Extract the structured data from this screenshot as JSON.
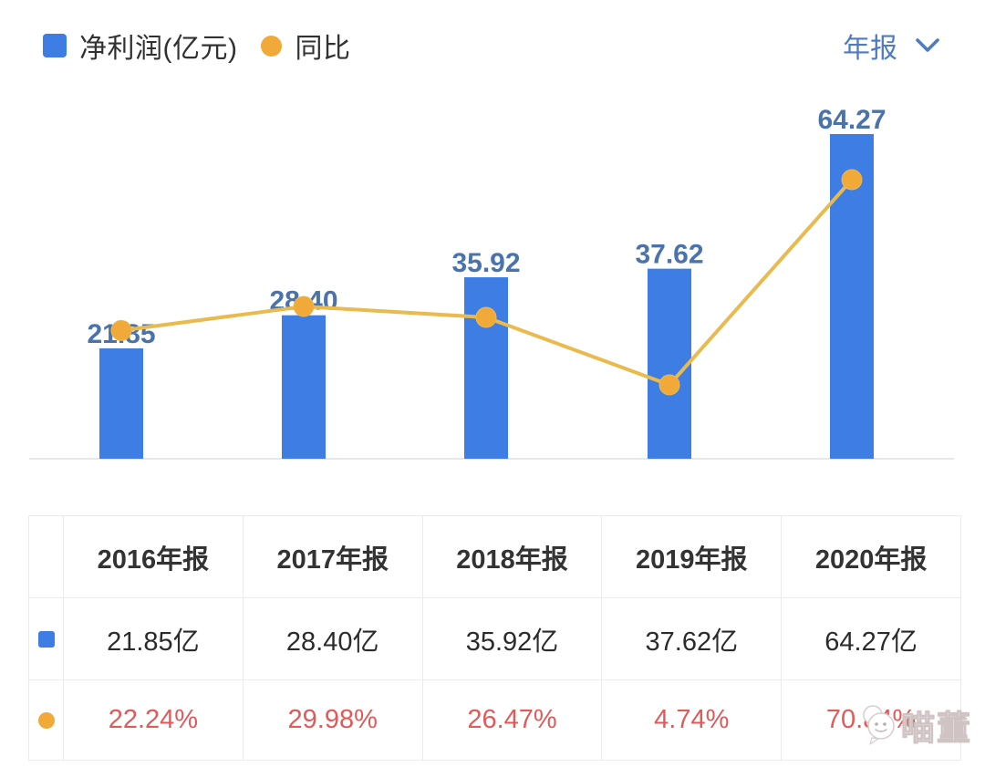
{
  "legend": {
    "bar_label": "净利润(亿元)",
    "line_label": "同比"
  },
  "period_selector": {
    "label": "年报"
  },
  "colors": {
    "bar": "#3d7de4",
    "bar_label": "#4a73ab",
    "line": "#e9ba4d",
    "dot": "#f1a93a",
    "percent_red": "#e05a5a",
    "selector_blue": "#4d7cc0",
    "grid": "#ebebeb",
    "axis": "#e7e7e7",
    "text_dark": "#313131"
  },
  "chart_data": {
    "type": "bar+line combo",
    "categories": [
      "2016年报",
      "2017年报",
      "2018年报",
      "2019年报",
      "2020年报"
    ],
    "series": [
      {
        "name": "净利润(亿元)",
        "type": "bar",
        "values": [
          21.85,
          28.4,
          35.92,
          37.62,
          64.27
        ],
        "data_labels": [
          "21.85",
          "28.40",
          "35.92",
          "37.62",
          "64.27"
        ]
      },
      {
        "name": "同比",
        "type": "line",
        "unit": "%",
        "values": [
          22.24,
          29.98,
          26.47,
          4.74,
          70.84
        ]
      }
    ],
    "title": "",
    "xlabel": "",
    "ylabel": "",
    "bar_axis_range": [
      0,
      64.27
    ],
    "grid": "off",
    "axes_ticks": "hidden",
    "legend_position": "top-left",
    "data_labels_shown": "bar values only"
  },
  "table": {
    "header": [
      "2016年报",
      "2017年报",
      "2018年报",
      "2019年报",
      "2020年报"
    ],
    "rows": [
      {
        "icon": "blue-square-icon",
        "cells": [
          "21.85亿",
          "28.40亿",
          "35.92亿",
          "37.62亿",
          "64.27亿"
        ]
      },
      {
        "icon": "orange-circle-icon",
        "cells": [
          "22.24%",
          "29.98%",
          "26.47%",
          "4.74%",
          "70.84%"
        ]
      }
    ]
  },
  "watermark": {
    "text": "喵董",
    "icon": "chat-bubble-smiley"
  }
}
